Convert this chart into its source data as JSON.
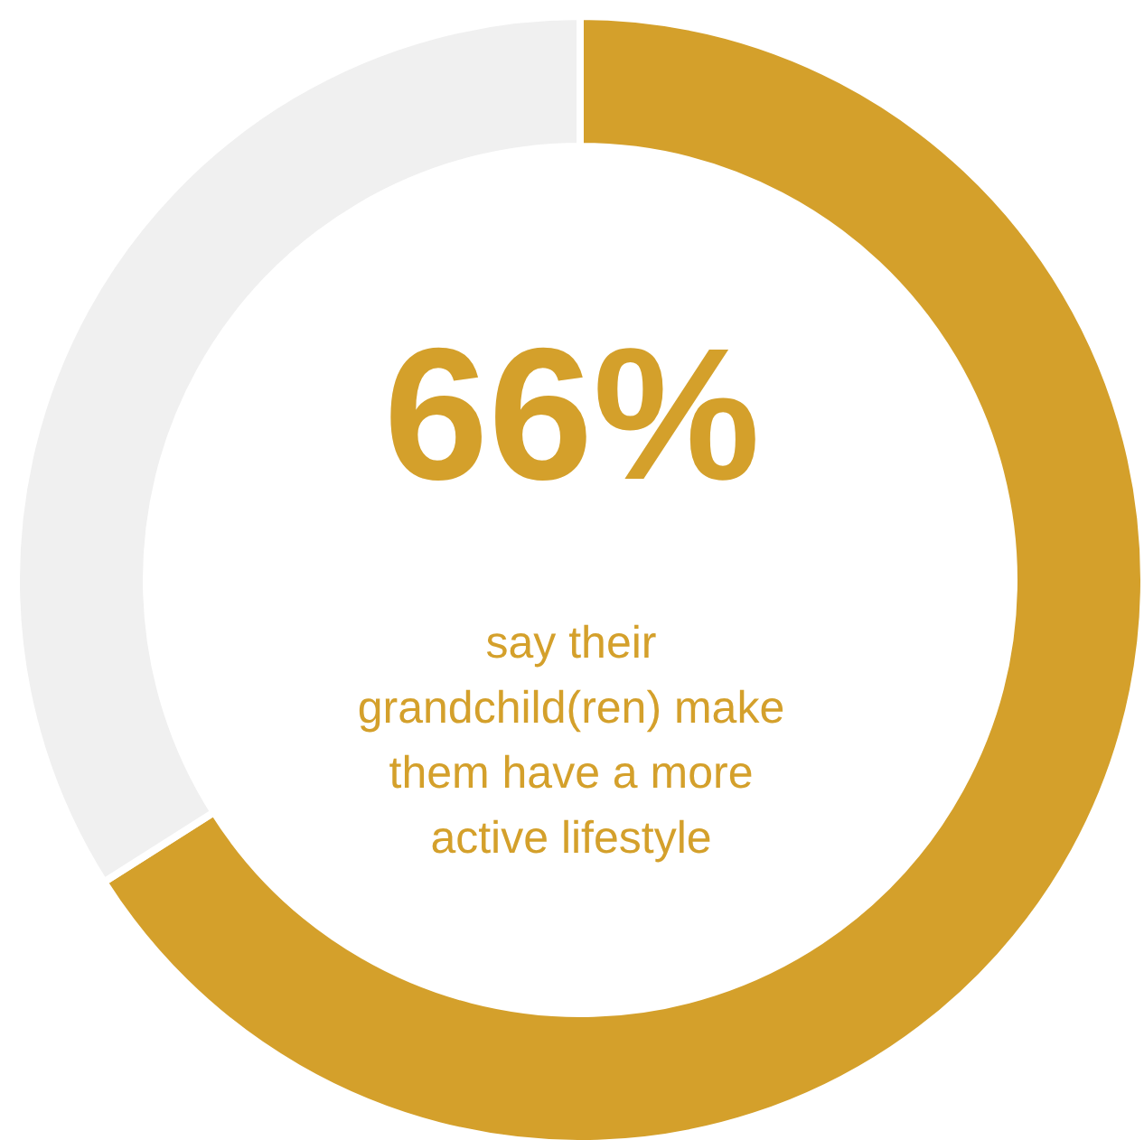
{
  "chart_data": {
    "type": "donut",
    "categories": [
      null,
      null
    ],
    "values": [
      66,
      34
    ],
    "colors": [
      "#d4a02b",
      "#f0f0f0"
    ],
    "value_labels": [
      "66%",
      null
    ],
    "annotations": [
      "say their grandchild(ren) make them have a more active lifestyle"
    ],
    "legend": false
  }
}
